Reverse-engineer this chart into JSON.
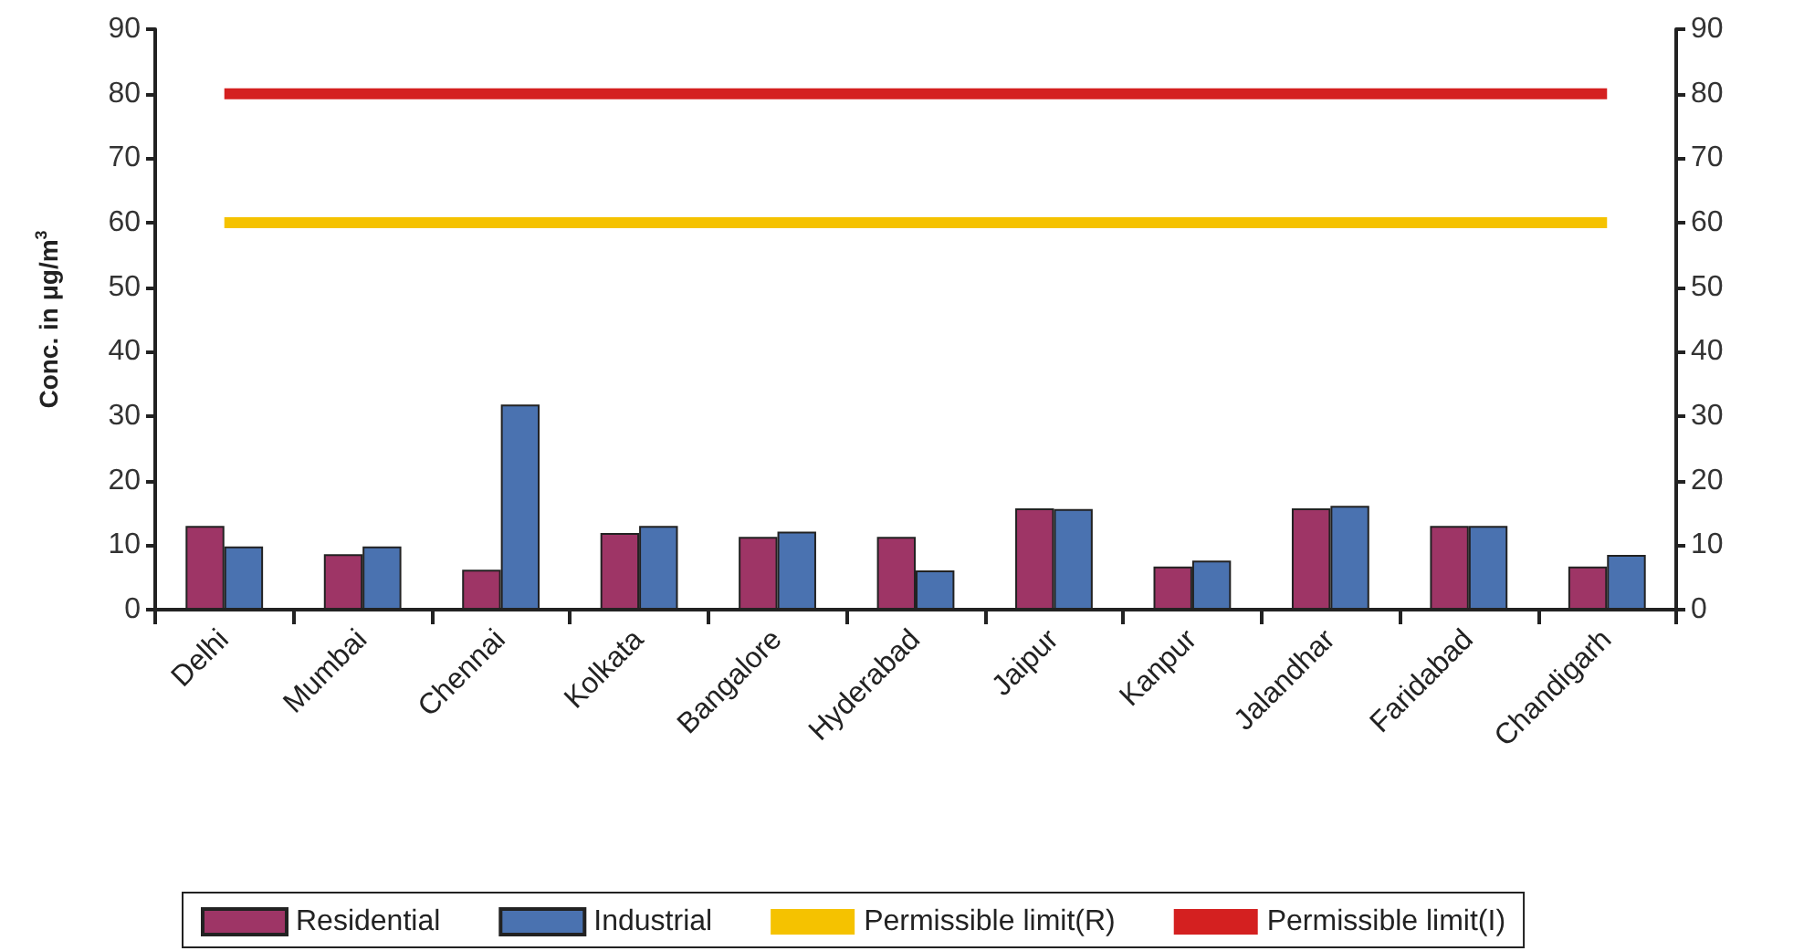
{
  "chart_data": {
    "type": "bar",
    "categories": [
      "Delhi",
      "Mumbai",
      "Chennai",
      "Kolkata",
      "Bangalore",
      "Hyderabad",
      "Jaipur",
      "Kanpur",
      "Jalandhar",
      "Faridabad",
      "Chandigarh"
    ],
    "series": [
      {
        "name": "Residential",
        "color": "#9e3566",
        "values": [
          13,
          8.6,
          6.2,
          11.9,
          11.3,
          11.3,
          15.7,
          6.7,
          15.7,
          13,
          6.7
        ]
      },
      {
        "name": "Industrial",
        "color": "#4a72b0",
        "values": [
          9.8,
          9.8,
          31.8,
          13,
          12.1,
          6.1,
          15.6,
          7.6,
          16.1,
          13,
          8.5
        ]
      },
      {
        "name": "Permissible limit(R)",
        "type": "line",
        "color": "#f5c200",
        "values": [
          60,
          60,
          60,
          60,
          60,
          60,
          60,
          60,
          60,
          60,
          60
        ]
      },
      {
        "name": "Permissible limit(I)",
        "type": "line",
        "color": "#d42020",
        "values": [
          80,
          80,
          80,
          80,
          80,
          80,
          80,
          80,
          80,
          80,
          80
        ]
      }
    ],
    "ylabel": "Conc. in μg/m$^{3}$",
    "ylim": [
      0,
      90
    ],
    "yticks": [
      0,
      10,
      20,
      30,
      40,
      50,
      60,
      70,
      80,
      90
    ],
    "y2lim": [
      0,
      90
    ],
    "y2ticks": [
      0,
      10,
      20,
      30,
      40,
      50,
      60,
      70,
      80,
      90
    ],
    "grid": false,
    "legend": "bottom",
    "marker": "none"
  }
}
